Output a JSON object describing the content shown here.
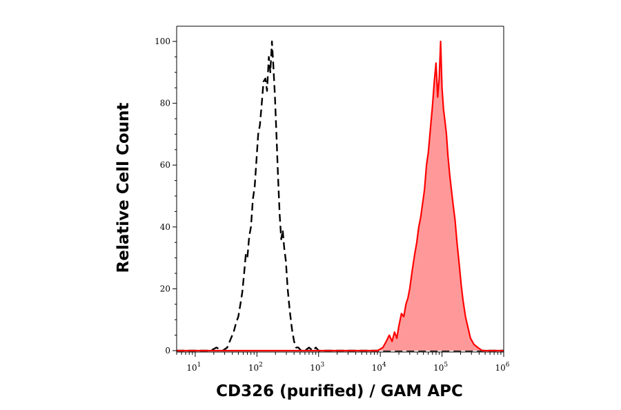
{
  "chart_data": {
    "type": "area",
    "xlabel": "CD326 (purified) / GAM APC",
    "ylabel": "Relative Cell Count",
    "xscale": "log",
    "xlim": [
      5,
      1000000
    ],
    "ylim": [
      0,
      100
    ],
    "grid": false,
    "x_ticks": [
      {
        "value": 10,
        "base": "10",
        "exp": "1"
      },
      {
        "value": 100,
        "base": "10",
        "exp": "2"
      },
      {
        "value": 1000,
        "base": "10",
        "exp": "3"
      },
      {
        "value": 10000,
        "base": "10",
        "exp": "4"
      },
      {
        "value": 100000,
        "base": "10",
        "exp": "5"
      },
      {
        "value": 1000000,
        "base": "10",
        "exp": "6"
      }
    ],
    "y_ticks": [
      {
        "value": 0,
        "label": "0"
      },
      {
        "value": 20,
        "label": "20"
      },
      {
        "value": 40,
        "label": "40"
      },
      {
        "value": 60,
        "label": "60"
      },
      {
        "value": 80,
        "label": "80"
      },
      {
        "value": 100,
        "label": "100"
      }
    ],
    "series": [
      {
        "style": "dashed-outline",
        "color": "#000000",
        "x": [
          5,
          18,
          22,
          28,
          33,
          38,
          42,
          46,
          50,
          54,
          58,
          62,
          66,
          70,
          75,
          80,
          86,
          92,
          98,
          105,
          112,
          120,
          128,
          137,
          146,
          156,
          165,
          175,
          185,
          196,
          208,
          220,
          234,
          248,
          262,
          278,
          295,
          315,
          340,
          370,
          400,
          430,
          470,
          520,
          600,
          700,
          800,
          900,
          1000,
          1300,
          5000,
          1000000
        ],
        "y": [
          0,
          0,
          1,
          0,
          1,
          4,
          6,
          9,
          11,
          15,
          19,
          25,
          31,
          30,
          37,
          40,
          49,
          53,
          61,
          70,
          73,
          80,
          87,
          88,
          84,
          95,
          90,
          100,
          92,
          82,
          69,
          56,
          44,
          36,
          39,
          33,
          29,
          20,
          13,
          7,
          3,
          1,
          1,
          0,
          0,
          1,
          0,
          1,
          0,
          0,
          0,
          0
        ]
      },
      {
        "style": "filled",
        "color": "#ff0000",
        "fill": "#ff9999",
        "x": [
          5,
          9000,
          11000,
          12500,
          14000,
          15500,
          17000,
          18500,
          20000,
          22000,
          24000,
          26000,
          28000,
          30000,
          33000,
          36000,
          39000,
          42000,
          45000,
          48000,
          52000,
          56000,
          60000,
          65000,
          70000,
          75000,
          80000,
          85000,
          90000,
          95000,
          100000,
          106000,
          112000,
          118000,
          125000,
          133000,
          142000,
          152000,
          163000,
          175000,
          190000,
          205000,
          220000,
          240000,
          260000,
          290000,
          330000,
          380000,
          450000,
          1000000
        ],
        "y": [
          0,
          0,
          1,
          3,
          5,
          3,
          6,
          4,
          8,
          12,
          11,
          15,
          17,
          20,
          26,
          31,
          35,
          40,
          43,
          47,
          52,
          60,
          64,
          72,
          79,
          87,
          93,
          82,
          88,
          100,
          85,
          78,
          74,
          70,
          63,
          57,
          52,
          47,
          42,
          35,
          28,
          21,
          16,
          11,
          8,
          4,
          2,
          1,
          0,
          0
        ]
      }
    ]
  }
}
